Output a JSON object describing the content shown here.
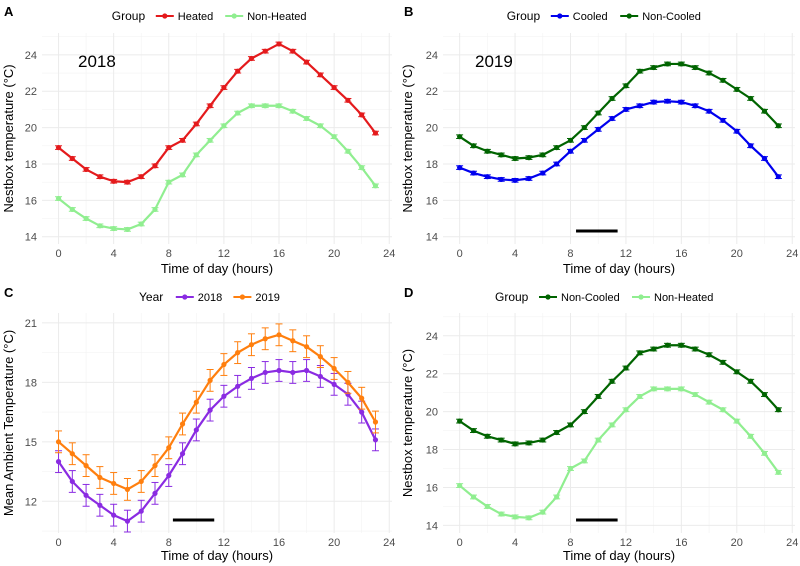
{
  "chart_data": [
    {
      "panel": "A",
      "type": "line",
      "annotation": "2018",
      "xlabel": "Time of day (hours)",
      "ylabel": "Nestbox temperature (°C)",
      "xlim": [
        -1.2,
        24.2
      ],
      "ylim": [
        13.6,
        25.2
      ],
      "xticks": [
        0,
        4,
        8,
        12,
        16,
        20,
        24
      ],
      "yticks": [
        14,
        16,
        18,
        20,
        22,
        24
      ],
      "legend_title": "Group",
      "legend_position": "top",
      "error_bars": true,
      "x": [
        0,
        1,
        2,
        3,
        4,
        5,
        6,
        7,
        8,
        9,
        10,
        11,
        12,
        13,
        14,
        15,
        16,
        17,
        18,
        19,
        20,
        21,
        22,
        23
      ],
      "series": [
        {
          "name": "Heated",
          "color": "#e41a1c",
          "err": 0.1,
          "values": [
            18.9,
            18.3,
            17.7,
            17.3,
            17.05,
            17.0,
            17.3,
            17.9,
            18.9,
            19.3,
            20.2,
            21.2,
            22.2,
            23.1,
            23.8,
            24.2,
            24.6,
            24.2,
            23.6,
            22.9,
            22.2,
            21.5,
            20.7,
            19.7
          ]
        },
        {
          "name": "Non-Heated",
          "color": "#90ee90",
          "err": 0.1,
          "values": [
            16.1,
            15.5,
            15.0,
            14.6,
            14.45,
            14.4,
            14.7,
            15.5,
            17.0,
            17.4,
            18.5,
            19.3,
            20.1,
            20.8,
            21.2,
            21.2,
            21.2,
            20.9,
            20.5,
            20.1,
            19.5,
            18.7,
            17.8,
            16.8
          ]
        }
      ]
    },
    {
      "panel": "B",
      "type": "line",
      "annotation": "2019",
      "xlabel": "Time of day (hours)",
      "ylabel": "Nestbox temperature (°C)",
      "xlim": [
        -1.2,
        24.2
      ],
      "ylim": [
        13.6,
        25.2
      ],
      "xticks": [
        0,
        4,
        8,
        12,
        16,
        20,
        24
      ],
      "yticks": [
        14,
        16,
        18,
        20,
        22,
        24
      ],
      "legend_title": "Group",
      "legend_position": "top",
      "error_bars": true,
      "bar_segment": [
        8.4,
        11.4
      ],
      "x": [
        0,
        1,
        2,
        3,
        4,
        5,
        6,
        7,
        8,
        9,
        10,
        11,
        12,
        13,
        14,
        15,
        16,
        17,
        18,
        19,
        20,
        21,
        22,
        23
      ],
      "series": [
        {
          "name": "Cooled",
          "color": "#0000ee",
          "err": 0.1,
          "values": [
            17.8,
            17.5,
            17.3,
            17.15,
            17.1,
            17.2,
            17.5,
            18.0,
            18.7,
            19.3,
            19.9,
            20.5,
            21.0,
            21.2,
            21.4,
            21.45,
            21.4,
            21.2,
            20.9,
            20.4,
            19.8,
            19.0,
            18.3,
            17.3
          ]
        },
        {
          "name": "Non-Cooled",
          "color": "#006400",
          "err": 0.1,
          "values": [
            19.5,
            19.0,
            18.7,
            18.5,
            18.3,
            18.35,
            18.5,
            18.9,
            19.3,
            20.0,
            20.8,
            21.6,
            22.3,
            23.1,
            23.3,
            23.5,
            23.5,
            23.3,
            23.0,
            22.6,
            22.1,
            21.6,
            20.9,
            20.1
          ]
        }
      ]
    },
    {
      "panel": "C",
      "type": "line",
      "xlabel": "Time of day (hours)",
      "ylabel": "Mean Ambient Temperature (°C)",
      "xlim": [
        -1.2,
        24.2
      ],
      "ylim": [
        10.4,
        21.5
      ],
      "xticks": [
        0,
        4,
        8,
        12,
        16,
        20,
        24
      ],
      "yticks": [
        12,
        15,
        18,
        21
      ],
      "legend_title": "Year",
      "legend_position": "top",
      "error_bars": true,
      "bar_segment": [
        8.3,
        11.3
      ],
      "x": [
        0,
        1,
        2,
        3,
        4,
        5,
        6,
        7,
        8,
        9,
        10,
        11,
        12,
        13,
        14,
        15,
        16,
        17,
        18,
        19,
        20,
        21,
        22,
        23
      ],
      "series": [
        {
          "name": "2018",
          "color": "#8a2be2",
          "err": 0.55,
          "values": [
            14.0,
            13.0,
            12.3,
            11.8,
            11.3,
            11.0,
            11.5,
            12.4,
            13.3,
            14.4,
            15.6,
            16.6,
            17.3,
            17.8,
            18.2,
            18.5,
            18.6,
            18.5,
            18.6,
            18.3,
            17.9,
            17.4,
            16.5,
            15.1
          ]
        },
        {
          "name": "2019",
          "color": "#ff7f0e",
          "err": 0.55,
          "values": [
            15.0,
            14.4,
            13.8,
            13.2,
            12.9,
            12.6,
            13.0,
            13.8,
            14.7,
            15.9,
            17.0,
            18.1,
            18.9,
            19.5,
            19.9,
            20.2,
            20.4,
            20.1,
            19.8,
            19.3,
            18.7,
            18.0,
            17.2,
            16.0
          ]
        }
      ]
    },
    {
      "panel": "D",
      "type": "line",
      "xlabel": "Time of day (hours)",
      "ylabel": "Nestbox temperature (°C)",
      "xlim": [
        -1.2,
        24.2
      ],
      "ylim": [
        13.6,
        25.2
      ],
      "xticks": [
        0,
        4,
        8,
        12,
        16,
        20,
        24
      ],
      "yticks": [
        14,
        16,
        18,
        20,
        22,
        24
      ],
      "legend_title": "Group",
      "legend_position": "top",
      "error_bars": true,
      "bar_segment": [
        8.4,
        11.4
      ],
      "x": [
        0,
        1,
        2,
        3,
        4,
        5,
        6,
        7,
        8,
        9,
        10,
        11,
        12,
        13,
        14,
        15,
        16,
        17,
        18,
        19,
        20,
        21,
        22,
        23
      ],
      "series": [
        {
          "name": "Non-Cooled",
          "color": "#006400",
          "err": 0.1,
          "values": [
            19.5,
            19.0,
            18.7,
            18.5,
            18.3,
            18.35,
            18.5,
            18.9,
            19.3,
            20.0,
            20.8,
            21.6,
            22.3,
            23.1,
            23.3,
            23.5,
            23.5,
            23.3,
            23.0,
            22.6,
            22.1,
            21.6,
            20.9,
            20.1
          ]
        },
        {
          "name": "Non-Heated",
          "color": "#90ee90",
          "err": 0.1,
          "values": [
            16.1,
            15.5,
            15.0,
            14.6,
            14.45,
            14.4,
            14.7,
            15.5,
            17.0,
            17.4,
            18.5,
            19.3,
            20.1,
            20.8,
            21.2,
            21.2,
            21.2,
            20.9,
            20.5,
            20.1,
            19.5,
            18.7,
            17.8,
            16.8
          ]
        }
      ]
    }
  ]
}
